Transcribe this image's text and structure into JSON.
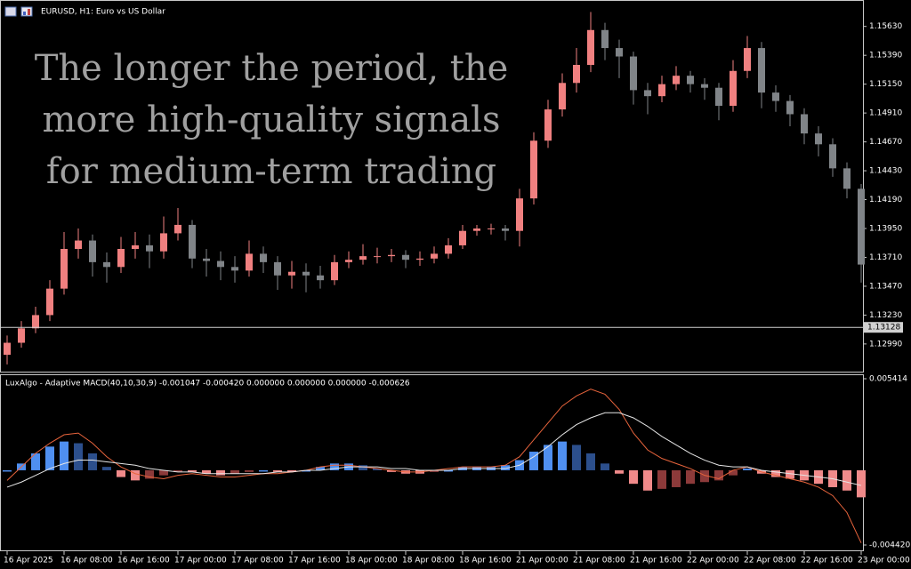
{
  "chart_data": [
    {
      "type": "candlestick",
      "title": "EURUSD, H1:  Euro vs US Dollar",
      "annotations": [
        "The longer the period, the",
        "more high-quality signals",
        "for medium-term trading"
      ],
      "open": [
        1.129,
        1.13,
        1.1312,
        1.1323,
        1.1345,
        1.1378,
        1.1385,
        1.1367,
        1.1363,
        1.1378,
        1.1381,
        1.1376,
        1.1391,
        1.1398,
        1.137,
        1.1368,
        1.1363,
        1.136,
        1.1374,
        1.1367,
        1.1356,
        1.1359,
        1.1356,
        1.1352,
        1.1367,
        1.1369,
        1.1372,
        1.1372,
        1.1373,
        1.1369,
        1.137,
        1.1374,
        1.1381,
        1.1393,
        1.1395,
        1.1395,
        1.1393,
        1.142,
        1.1468,
        1.1494,
        1.1516,
        1.1531,
        1.156,
        1.1545,
        1.1538,
        1.151,
        1.1505,
        1.1515,
        1.1522,
        1.1515,
        1.1512,
        1.1497,
        1.1526,
        1.1545,
        1.1508,
        1.1501,
        1.149,
        1.1474,
        1.1465,
        1.1445,
        1.1428
      ],
      "high": [
        1.1306,
        1.1318,
        1.133,
        1.1352,
        1.1392,
        1.1395,
        1.139,
        1.1375,
        1.1388,
        1.1392,
        1.139,
        1.1405,
        1.1412,
        1.1402,
        1.1378,
        1.1376,
        1.1372,
        1.1385,
        1.138,
        1.1372,
        1.1368,
        1.1366,
        1.1364,
        1.1373,
        1.1376,
        1.1382,
        1.1379,
        1.1378,
        1.1377,
        1.1376,
        1.138,
        1.1387,
        1.1398,
        1.1398,
        1.1399,
        1.1398,
        1.1428,
        1.1475,
        1.1502,
        1.1524,
        1.1545,
        1.1575,
        1.1566,
        1.1552,
        1.1542,
        1.1516,
        1.1522,
        1.153,
        1.1526,
        1.152,
        1.1516,
        1.1535,
        1.1555,
        1.155,
        1.1514,
        1.1506,
        1.1495,
        1.148,
        1.147,
        1.145,
        1.1432
      ],
      "low": [
        1.1282,
        1.1296,
        1.1308,
        1.1318,
        1.134,
        1.137,
        1.1355,
        1.135,
        1.1358,
        1.137,
        1.1362,
        1.137,
        1.1385,
        1.1362,
        1.1355,
        1.1352,
        1.135,
        1.1355,
        1.1358,
        1.1344,
        1.1345,
        1.1342,
        1.1345,
        1.1348,
        1.1362,
        1.1365,
        1.1366,
        1.1367,
        1.1362,
        1.1364,
        1.1366,
        1.137,
        1.1378,
        1.1389,
        1.139,
        1.1385,
        1.138,
        1.1415,
        1.1462,
        1.1488,
        1.1508,
        1.1525,
        1.1535,
        1.152,
        1.1498,
        1.149,
        1.15,
        1.151,
        1.1508,
        1.1502,
        1.1485,
        1.1492,
        1.152,
        1.1495,
        1.1492,
        1.148,
        1.1465,
        1.1455,
        1.1438,
        1.142,
        1.135
      ],
      "close": [
        1.13,
        1.1312,
        1.1323,
        1.1345,
        1.1378,
        1.1385,
        1.1367,
        1.1363,
        1.1378,
        1.1381,
        1.1376,
        1.1391,
        1.1398,
        1.137,
        1.1368,
        1.1363,
        1.136,
        1.1374,
        1.1367,
        1.1356,
        1.1359,
        1.1356,
        1.1352,
        1.1367,
        1.1369,
        1.1372,
        1.1372,
        1.1373,
        1.1369,
        1.137,
        1.1374,
        1.1381,
        1.1393,
        1.1395,
        1.1395,
        1.1393,
        1.142,
        1.1468,
        1.1494,
        1.1516,
        1.1531,
        1.156,
        1.1545,
        1.1538,
        1.151,
        1.1505,
        1.1515,
        1.1522,
        1.1515,
        1.1512,
        1.1497,
        1.1526,
        1.1545,
        1.1508,
        1.1501,
        1.149,
        1.1474,
        1.1465,
        1.1445,
        1.1428,
        1.1365
      ],
      "up_color": "#f08080",
      "down_color": "#808488",
      "price_line": 1.13128,
      "ylim": [
        1.1276,
        1.1582
      ],
      "yticks": [
        {
          "value": 1.1563,
          "label": "1.15630"
        },
        {
          "value": 1.1539,
          "label": "1.15390"
        },
        {
          "value": 1.1515,
          "label": "1.15150"
        },
        {
          "value": 1.1491,
          "label": "1.14910"
        },
        {
          "value": 1.1467,
          "label": "1.14670"
        },
        {
          "value": 1.1443,
          "label": "1.14430"
        },
        {
          "value": 1.1419,
          "label": "1.14190"
        },
        {
          "value": 1.1395,
          "label": "1.13950"
        },
        {
          "value": 1.1371,
          "label": "1.13710"
        },
        {
          "value": 1.1347,
          "label": "1.13470"
        },
        {
          "value": 1.1323,
          "label": "1.13230"
        },
        {
          "value": 1.1299,
          "label": "1.12990"
        }
      ]
    },
    {
      "type": "macd",
      "title": "LuxAlgo - Adaptive MACD(40,10,30,9) -0.001047 -0.000420 0.000000 0.000000 0.000000 -0.000626",
      "histogram": [
        0,
        0.0004,
        0.001,
        0.0014,
        0.0017,
        0.0016,
        0.001,
        0.0002,
        -0.0004,
        -0.0006,
        -0.0005,
        -0.0003,
        -0.0001,
        -0.0001,
        -0.0002,
        -0.0003,
        -0.0002,
        -0.0001,
        0,
        -0.0001,
        -0.0001,
        0,
        0.0002,
        0.0004,
        0.0004,
        0.0003,
        0.0001,
        -0.0001,
        -0.0002,
        -0.0002,
        -0.0001,
        0,
        0.0002,
        0.0002,
        0.0002,
        0.0003,
        0.0006,
        0.0011,
        0.0015,
        0.0017,
        0.0015,
        0.001,
        0.0004,
        -0.0002,
        -0.0008,
        -0.0012,
        -0.0011,
        -0.001,
        -0.0008,
        -0.0007,
        -0.0006,
        -0.0003,
        0.0001,
        -0.0002,
        -0.0004,
        -0.0005,
        -0.0006,
        -0.0008,
        -0.001,
        -0.0012,
        -0.0016
      ],
      "macd": [
        -0.0006,
        0.0002,
        0.001,
        0.0016,
        0.0021,
        0.0022,
        0.0016,
        0.0008,
        0.0002,
        -0.0002,
        -0.0004,
        -0.0005,
        -0.0003,
        -0.0002,
        -0.0003,
        -0.0004,
        -0.0004,
        -0.0003,
        -0.0002,
        -0.0002,
        -0.0001,
        0,
        0.0002,
        0.0003,
        0.0003,
        0.0002,
        0.0001,
        0,
        -0.0001,
        -0.0001,
        0,
        0.0001,
        0.0002,
        0.0002,
        0.0002,
        0.0003,
        0.0008,
        0.0018,
        0.0028,
        0.0038,
        0.0044,
        0.0048,
        0.0045,
        0.0036,
        0.0022,
        0.0012,
        0.0007,
        0.0004,
        0.0001,
        -0.0003,
        -0.0005,
        0,
        0.0002,
        -0.0001,
        -0.0003,
        -0.0005,
        -0.0007,
        -0.001,
        -0.0015,
        -0.0025,
        -0.0043
      ],
      "signal": [
        -0.001,
        -0.0007,
        -0.0003,
        0.0001,
        0.0004,
        0.0006,
        0.0006,
        0.0005,
        0.0004,
        0.0003,
        0.0001,
        0,
        -0.0001,
        -0.0001,
        -0.0002,
        -0.0002,
        -0.0002,
        -0.0002,
        -0.0002,
        -0.0001,
        -0.0001,
        0,
        0,
        0.0001,
        0.0002,
        0.0002,
        0.0002,
        0.0001,
        0.0001,
        0,
        0,
        0,
        0.0001,
        0.0001,
        0.0001,
        0.0001,
        0.0003,
        0.0008,
        0.0014,
        0.0021,
        0.0027,
        0.0031,
        0.0034,
        0.0034,
        0.0031,
        0.0026,
        0.002,
        0.0015,
        0.001,
        0.0006,
        0.0003,
        0.0002,
        0.0002,
        0,
        -0.0001,
        -0.0002,
        -0.0003,
        -0.0004,
        -0.0005,
        -0.0007,
        -0.0009
      ],
      "histogram_colors": [
        "#4f8ff0",
        "#2c4f8c",
        "#f08a8a",
        "#8c3a3a"
      ],
      "macd_color": "#e8643c",
      "signal_color": "#e6e6e6",
      "ylim": [
        -0.00442,
        0.005414
      ],
      "yticks": [
        0.005414,
        {
          "value": -0.00442,
          "label": "-0.004420"
        }
      ],
      "xticks": [
        {
          "value": 0,
          "label": "16 Apr 2025"
        },
        {
          "value": 4,
          "label": "16 Apr 08:00"
        },
        {
          "value": 8,
          "label": "16 Apr 16:00"
        },
        {
          "value": 12,
          "label": "17 Apr 00:00"
        },
        {
          "value": 16,
          "label": "17 Apr 08:00"
        },
        {
          "value": 20,
          "label": "17 Apr 16:00"
        },
        {
          "value": 24,
          "label": "18 Apr 00:00"
        },
        {
          "value": 28,
          "label": "18 Apr 08:00"
        },
        {
          "value": 32,
          "label": "18 Apr 16:00"
        },
        {
          "value": 36,
          "label": "21 Apr 00:00"
        },
        {
          "value": 40,
          "label": "21 Apr 08:00"
        },
        {
          "value": 44,
          "label": "21 Apr 16:00"
        },
        {
          "value": 48,
          "label": "22 Apr 00:00"
        },
        {
          "value": 52,
          "label": "22 Apr 08:00"
        },
        {
          "value": 56,
          "label": "22 Apr 16:00"
        },
        {
          "value": 60,
          "label": "23 Apr 00:00"
        }
      ]
    }
  ]
}
